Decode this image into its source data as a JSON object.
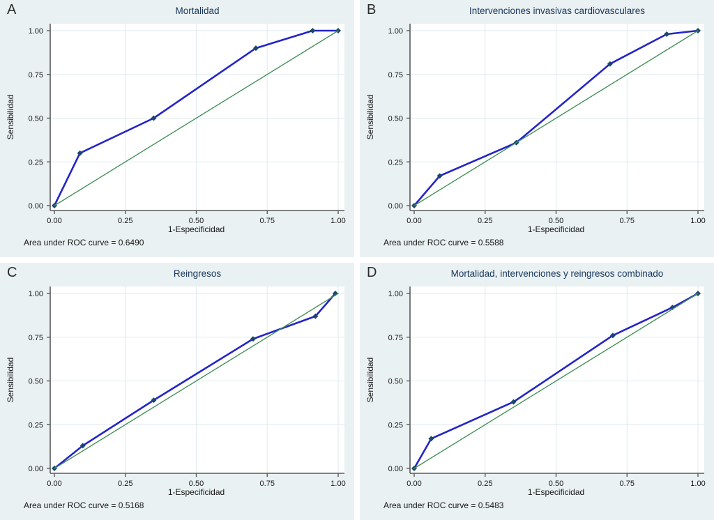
{
  "colors": {
    "panel_bg": "#eaf1f3",
    "plot_bg": "#ffffff",
    "gridline": "#dfeaed",
    "axis": "#5a5a5a",
    "tick_text": "#161616",
    "roc_line": "#2424c8",
    "marker": "#1a476f",
    "reference_line": "#459158",
    "title": "#17365d"
  },
  "chart_data": [
    {
      "type": "line",
      "panel_label": "A",
      "title": "Mortalidad",
      "xlabel": "1-Especificidad",
      "ylabel": "Sensibilidad",
      "footer": "Area under ROC curve = 0.6490",
      "auc": 0.649,
      "xlim": [
        0,
        1
      ],
      "ylim": [
        0,
        1
      ],
      "grid": true,
      "x_tick_labels": [
        "0.00",
        "0.25",
        "0.50",
        "0.75",
        "1.00"
      ],
      "y_tick_labels": [
        "0.00",
        "0.25",
        "0.50",
        "0.75",
        "1.00"
      ],
      "tick_values": [
        0,
        0.25,
        0.5,
        0.75,
        1
      ],
      "series": [
        {
          "name": "roc-curve",
          "role": "roc",
          "marker": "diamond",
          "points": [
            [
              0,
              0
            ],
            [
              0.09,
              0.3
            ],
            [
              0.35,
              0.5
            ],
            [
              0.71,
              0.9
            ],
            [
              0.91,
              1.0
            ],
            [
              1.0,
              1.0
            ]
          ]
        },
        {
          "name": "reference-diagonal",
          "role": "reference",
          "marker": "none",
          "points": [
            [
              0,
              0
            ],
            [
              1,
              1
            ]
          ]
        }
      ]
    },
    {
      "type": "line",
      "panel_label": "B",
      "title": "Intervenciones invasivas cardiovasculares",
      "xlabel": "1-Especificidad",
      "ylabel": "Sensibilidad",
      "footer": "Area under ROC curve = 0.5588",
      "auc": 0.5588,
      "xlim": [
        0,
        1
      ],
      "ylim": [
        0,
        1
      ],
      "grid": true,
      "x_tick_labels": [
        "0.00",
        "0.25",
        "0.50",
        "0.75",
        "1.00"
      ],
      "y_tick_labels": [
        "0.00",
        "0.25",
        "0.50",
        "0.75",
        "1.00"
      ],
      "tick_values": [
        0,
        0.25,
        0.5,
        0.75,
        1
      ],
      "series": [
        {
          "name": "roc-curve",
          "role": "roc",
          "marker": "diamond",
          "points": [
            [
              0,
              0
            ],
            [
              0.09,
              0.17
            ],
            [
              0.36,
              0.36
            ],
            [
              0.69,
              0.81
            ],
            [
              0.89,
              0.98
            ],
            [
              1.0,
              1.0
            ]
          ]
        },
        {
          "name": "reference-diagonal",
          "role": "reference",
          "marker": "none",
          "points": [
            [
              0,
              0
            ],
            [
              1,
              1
            ]
          ]
        }
      ]
    },
    {
      "type": "line",
      "panel_label": "C",
      "title": "Reingresos",
      "xlabel": "1-Especificidad",
      "ylabel": "Sensibilidad",
      "footer": "Area under ROC curve = 0.5168",
      "auc": 0.5168,
      "xlim": [
        0,
        1
      ],
      "ylim": [
        0,
        1
      ],
      "grid": true,
      "x_tick_labels": [
        "0.00",
        "0.25",
        "0.50",
        "0.75",
        "1.00"
      ],
      "y_tick_labels": [
        "0.00",
        "0.25",
        "0.50",
        "0.75",
        "1.00"
      ],
      "tick_values": [
        0,
        0.25,
        0.5,
        0.75,
        1
      ],
      "series": [
        {
          "name": "roc-curve",
          "role": "roc",
          "marker": "diamond",
          "points": [
            [
              0,
              0
            ],
            [
              0.1,
              0.13
            ],
            [
              0.35,
              0.39
            ],
            [
              0.7,
              0.74
            ],
            [
              0.92,
              0.87
            ],
            [
              0.99,
              1.0
            ]
          ]
        },
        {
          "name": "reference-diagonal",
          "role": "reference",
          "marker": "none",
          "points": [
            [
              0,
              0
            ],
            [
              1,
              1
            ]
          ]
        }
      ]
    },
    {
      "type": "line",
      "panel_label": "D",
      "title": "Mortalidad, intervenciones y reingresos combinado",
      "xlabel": "1-Especificidad",
      "ylabel": "Sensibilidad",
      "footer": "Area under ROC curve = 0.5483",
      "auc": 0.5483,
      "xlim": [
        0,
        1
      ],
      "ylim": [
        0,
        1
      ],
      "grid": true,
      "x_tick_labels": [
        "0.00",
        "0.25",
        "0.50",
        "0.75",
        "1.00"
      ],
      "y_tick_labels": [
        "0.00",
        "0.25",
        "0.50",
        "0.75",
        "1.00"
      ],
      "tick_values": [
        0,
        0.25,
        0.5,
        0.75,
        1
      ],
      "series": [
        {
          "name": "roc-curve",
          "role": "roc",
          "marker": "diamond",
          "points": [
            [
              0,
              0
            ],
            [
              0.06,
              0.17
            ],
            [
              0.35,
              0.38
            ],
            [
              0.7,
              0.76
            ],
            [
              0.91,
              0.92
            ],
            [
              1.0,
              1.0
            ]
          ]
        },
        {
          "name": "reference-diagonal",
          "role": "reference",
          "marker": "none",
          "points": [
            [
              0,
              0
            ],
            [
              1,
              1
            ]
          ]
        }
      ]
    }
  ]
}
